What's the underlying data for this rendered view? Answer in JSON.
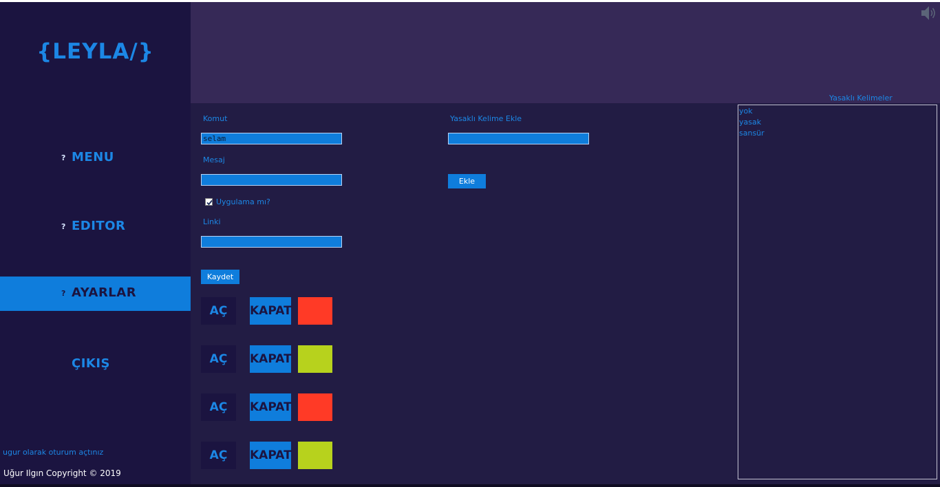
{
  "app": {
    "logo": "{LEYLA/}"
  },
  "sidebar": {
    "items": [
      {
        "icon": "?",
        "label": "MENU",
        "active": false
      },
      {
        "icon": "?",
        "label": "EDITOR",
        "active": false
      },
      {
        "icon": "?",
        "label": "AYARLAR",
        "active": true
      },
      {
        "icon": "",
        "label": "ÇIKIŞ",
        "active": false
      }
    ],
    "login_note": "ugur olarak oturum açtınız",
    "copyright": "Uğur Ilgın Copyright © 2019"
  },
  "form": {
    "komut_label": "Komut",
    "komut_value": "selam",
    "mesaj_label": "Mesaj",
    "mesaj_value": "",
    "checkbox_label": "Uygulama mı?",
    "checkbox_checked": true,
    "linki_label": "Linki",
    "linki_value": "",
    "save_label": "Kaydet"
  },
  "banned_add": {
    "label": "Yasaklı Kelime Ekle",
    "value": "",
    "button_label": "Ekle"
  },
  "toggles": [
    {
      "on_label": "AÇ",
      "off_label": "KAPAT",
      "status_color": "#ff3a26"
    },
    {
      "on_label": "AÇ",
      "off_label": "KAPAT",
      "status_color": "#b7d21d"
    },
    {
      "on_label": "AÇ",
      "off_label": "KAPAT",
      "status_color": "#ff3a26"
    },
    {
      "on_label": "AÇ",
      "off_label": "KAPAT",
      "status_color": "#b7d21d"
    }
  ],
  "banned_words": {
    "title": "Yasaklı Kelimeler",
    "items": [
      "yok",
      "yasak",
      "sansür"
    ]
  },
  "header": {
    "speaker_icon": "speaker-icon"
  },
  "colors": {
    "accent": "#0f7ddc",
    "text_accent": "#1c87e5",
    "sidebar_bg": "#1b1440",
    "header_bg": "#362957",
    "main_bg": "#221c44"
  }
}
